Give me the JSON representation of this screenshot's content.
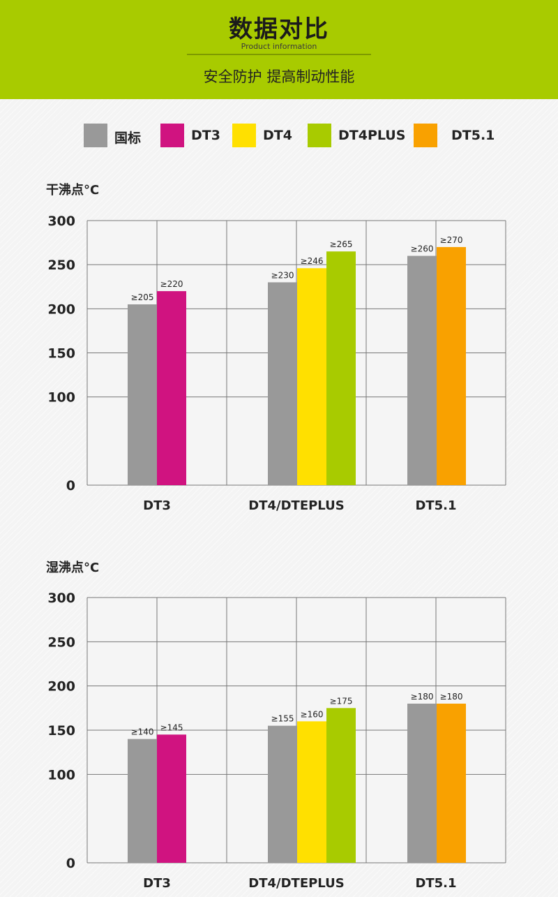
{
  "header": {
    "title": "数据对比",
    "subtitle": "Product information",
    "tagline": "安全防护 提高制动性能"
  },
  "legend": [
    {
      "label": "国标",
      "color": "#999999"
    },
    {
      "label": "DT3",
      "color": "#d01380"
    },
    {
      "label": "DT4",
      "color": "#ffe000"
    },
    {
      "label": "DT4PLUS",
      "color": "#a8cb00"
    },
    {
      "label": "DT5.1",
      "color": "#f9a100"
    }
  ],
  "chart_data": [
    {
      "type": "bar",
      "title": "干沸点°C",
      "ylim": [
        0,
        300
      ],
      "yticks": [
        0,
        100,
        150,
        200,
        250,
        300
      ],
      "grid": true,
      "groups": [
        {
          "category": "DT3",
          "bars": [
            {
              "series": "国标",
              "value": 205,
              "label": "≥205"
            },
            {
              "series": "DT3",
              "value": 220,
              "label": "≥220"
            }
          ]
        },
        {
          "category": "DT4/DTEPLUS",
          "bars": [
            {
              "series": "国标",
              "value": 230,
              "label": "≥230"
            },
            {
              "series": "DT4",
              "value": 246,
              "label": "≥246"
            },
            {
              "series": "DT4PLUS",
              "value": 265,
              "label": "≥265"
            }
          ]
        },
        {
          "category": "DT5.1",
          "bars": [
            {
              "series": "国标",
              "value": 260,
              "label": "≥260"
            },
            {
              "series": "DT5.1",
              "value": 270,
              "label": "≥270"
            }
          ]
        }
      ]
    },
    {
      "type": "bar",
      "title": "湿沸点°C",
      "ylim": [
        0,
        300
      ],
      "yticks": [
        0,
        100,
        150,
        200,
        250,
        300
      ],
      "grid": true,
      "groups": [
        {
          "category": "DT3",
          "bars": [
            {
              "series": "国标",
              "value": 140,
              "label": "≥140"
            },
            {
              "series": "DT3",
              "value": 145,
              "label": "≥145"
            }
          ]
        },
        {
          "category": "DT4/DTEPLUS",
          "bars": [
            {
              "series": "国标",
              "value": 155,
              "label": "≥155"
            },
            {
              "series": "DT4",
              "value": 160,
              "label": "≥160"
            },
            {
              "series": "DT4PLUS",
              "value": 175,
              "label": "≥175"
            }
          ]
        },
        {
          "category": "DT5.1",
          "bars": [
            {
              "series": "国标",
              "value": 180,
              "label": "≥180"
            },
            {
              "series": "DT5.1",
              "value": 180,
              "label": "≥180"
            }
          ]
        }
      ]
    }
  ]
}
